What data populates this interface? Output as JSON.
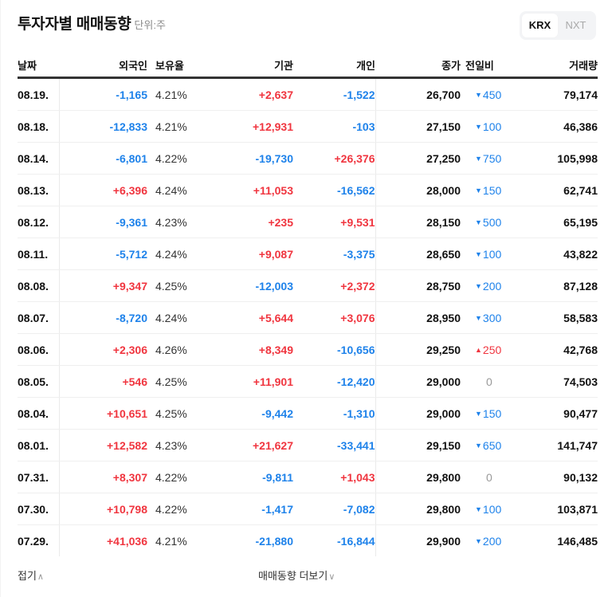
{
  "header": {
    "title": "투자자별 매매동향",
    "unit": "단위:주",
    "market_toggle": {
      "options": [
        "KRX",
        "NXT"
      ],
      "selected": "KRX"
    }
  },
  "table": {
    "columns": [
      "날짜",
      "외국인",
      "보유율",
      "기관",
      "개인",
      "종가",
      "전일비",
      "거래량"
    ],
    "rows": [
      {
        "date": "08.19.",
        "foreign": "-1,165",
        "ratio": "4.21%",
        "inst": "+2,637",
        "ind": "-1,522",
        "close": "26,700",
        "chg_dir": "down",
        "chg": "450",
        "vol": "79,174"
      },
      {
        "date": "08.18.",
        "foreign": "-12,833",
        "ratio": "4.21%",
        "inst": "+12,931",
        "ind": "-103",
        "close": "27,150",
        "chg_dir": "down",
        "chg": "100",
        "vol": "46,386"
      },
      {
        "date": "08.14.",
        "foreign": "-6,801",
        "ratio": "4.22%",
        "inst": "-19,730",
        "ind": "+26,376",
        "close": "27,250",
        "chg_dir": "down",
        "chg": "750",
        "vol": "105,998"
      },
      {
        "date": "08.13.",
        "foreign": "+6,396",
        "ratio": "4.24%",
        "inst": "+11,053",
        "ind": "-16,562",
        "close": "28,000",
        "chg_dir": "down",
        "chg": "150",
        "vol": "62,741"
      },
      {
        "date": "08.12.",
        "foreign": "-9,361",
        "ratio": "4.23%",
        "inst": "+235",
        "ind": "+9,531",
        "close": "28,150",
        "chg_dir": "down",
        "chg": "500",
        "vol": "65,195"
      },
      {
        "date": "08.11.",
        "foreign": "-5,712",
        "ratio": "4.24%",
        "inst": "+9,087",
        "ind": "-3,375",
        "close": "28,650",
        "chg_dir": "down",
        "chg": "100",
        "vol": "43,822"
      },
      {
        "date": "08.08.",
        "foreign": "+9,347",
        "ratio": "4.25%",
        "inst": "-12,003",
        "ind": "+2,372",
        "close": "28,750",
        "chg_dir": "down",
        "chg": "200",
        "vol": "87,128"
      },
      {
        "date": "08.07.",
        "foreign": "-8,720",
        "ratio": "4.24%",
        "inst": "+5,644",
        "ind": "+3,076",
        "close": "28,950",
        "chg_dir": "down",
        "chg": "300",
        "vol": "58,583"
      },
      {
        "date": "08.06.",
        "foreign": "+2,306",
        "ratio": "4.26%",
        "inst": "+8,349",
        "ind": "-10,656",
        "close": "29,250",
        "chg_dir": "up",
        "chg": "250",
        "vol": "42,768"
      },
      {
        "date": "08.05.",
        "foreign": "+546",
        "ratio": "4.25%",
        "inst": "+11,901",
        "ind": "-12,420",
        "close": "29,000",
        "chg_dir": "flat",
        "chg": "0",
        "vol": "74,503"
      },
      {
        "date": "08.04.",
        "foreign": "+10,651",
        "ratio": "4.25%",
        "inst": "-9,442",
        "ind": "-1,310",
        "close": "29,000",
        "chg_dir": "down",
        "chg": "150",
        "vol": "90,477"
      },
      {
        "date": "08.01.",
        "foreign": "+12,582",
        "ratio": "4.23%",
        "inst": "+21,627",
        "ind": "-33,441",
        "close": "29,150",
        "chg_dir": "down",
        "chg": "650",
        "vol": "141,747"
      },
      {
        "date": "07.31.",
        "foreign": "+8,307",
        "ratio": "4.22%",
        "inst": "-9,811",
        "ind": "+1,043",
        "close": "29,800",
        "chg_dir": "flat",
        "chg": "0",
        "vol": "90,132"
      },
      {
        "date": "07.30.",
        "foreign": "+10,798",
        "ratio": "4.22%",
        "inst": "-1,417",
        "ind": "-7,082",
        "close": "29,800",
        "chg_dir": "down",
        "chg": "100",
        "vol": "103,871"
      },
      {
        "date": "07.29.",
        "foreign": "+41,036",
        "ratio": "4.21%",
        "inst": "-21,880",
        "ind": "-16,844",
        "close": "29,900",
        "chg_dir": "down",
        "chg": "200",
        "vol": "146,485"
      }
    ]
  },
  "footer": {
    "fold_label": "접기",
    "more_label": "매매동향 더보기"
  },
  "colors": {
    "up": "#f0353f",
    "down": "#1e82ea",
    "flat": "#999999",
    "text": "#111111"
  },
  "icons": {
    "up": "▲",
    "down": "▼",
    "fold": "chevron-up-icon",
    "more": "chevron-down-icon"
  }
}
